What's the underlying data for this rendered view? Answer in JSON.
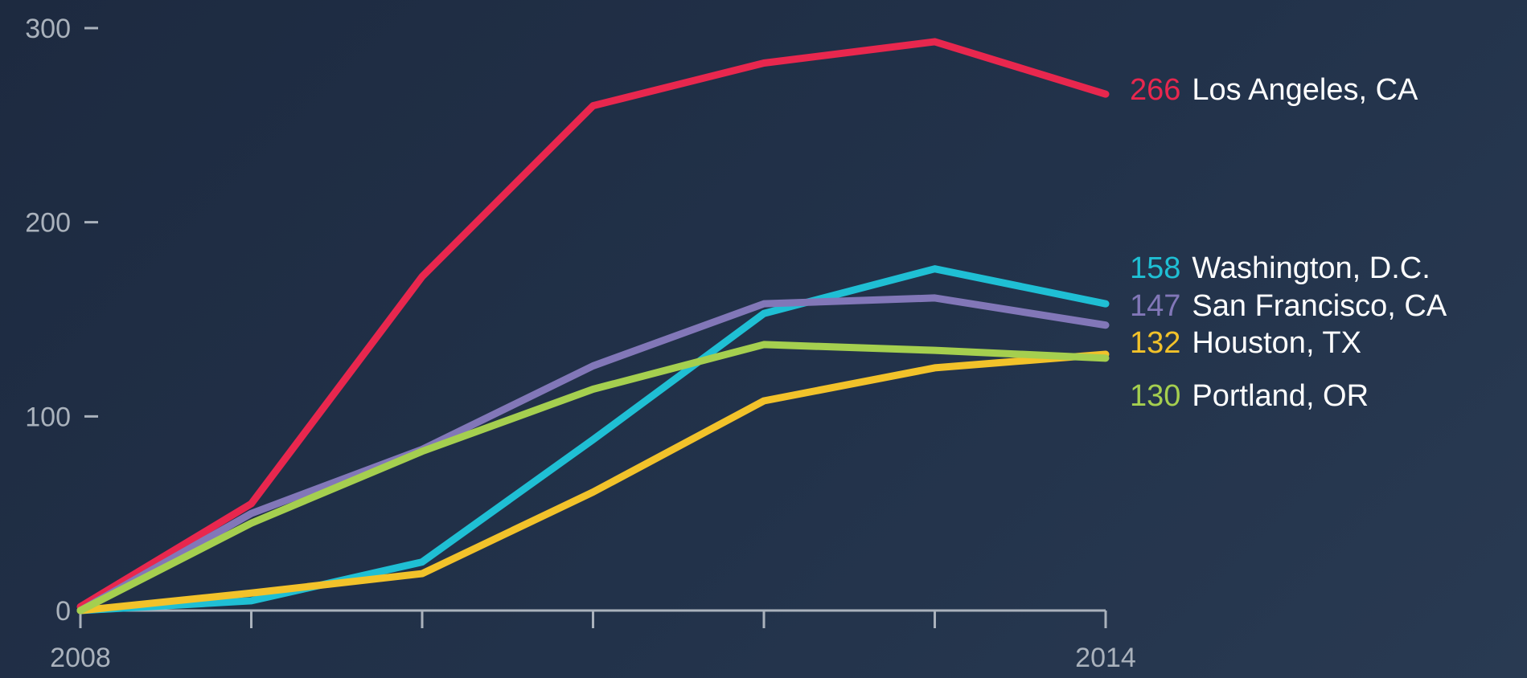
{
  "chart_data": {
    "type": "line",
    "x": [
      2008,
      2009,
      2010,
      2011,
      2012,
      2013,
      2014
    ],
    "x_tick_labels": [
      {
        "x": 2008,
        "label": "2008"
      },
      {
        "x": 2014,
        "label": "2014"
      }
    ],
    "y_ticks": [
      0,
      100,
      200,
      300
    ],
    "ylim": [
      0,
      300
    ],
    "xlim": [
      2008,
      2014
    ],
    "grid": false,
    "legend": "end-of-line labels at right",
    "series": [
      {
        "name": "Los Angeles, CA",
        "end_label": "266",
        "color": "#e8274e",
        "values": [
          2,
          55,
          172,
          260,
          282,
          293,
          266
        ]
      },
      {
        "name": "Washington, D.C.",
        "end_label": "158",
        "color": "#1fbfd4",
        "values": [
          0,
          5,
          25,
          88,
          153,
          176,
          158
        ]
      },
      {
        "name": "San Francisco, CA",
        "end_label": "147",
        "color": "#8277b8",
        "values": [
          0,
          50,
          83,
          126,
          158,
          161,
          147
        ]
      },
      {
        "name": "Houston, TX",
        "end_label": "132",
        "color": "#f2c22a",
        "values": [
          0,
          9,
          19,
          61,
          108,
          125,
          132
        ]
      },
      {
        "name": "Portland, OR",
        "end_label": "130",
        "color": "#a5cf4f",
        "values": [
          0,
          45,
          82,
          114,
          137,
          134,
          130
        ]
      }
    ]
  }
}
